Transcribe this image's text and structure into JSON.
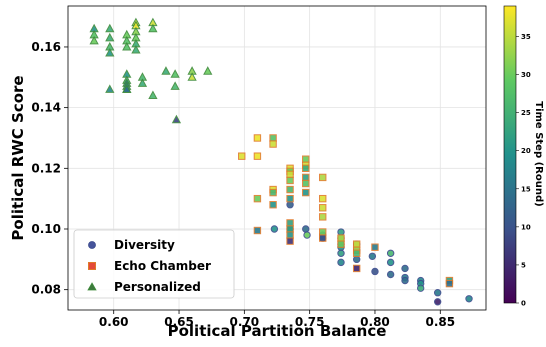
{
  "chart_data": {
    "type": "scatter",
    "xlabel": "Political Partition Balance",
    "ylabel": "Political RWC Score",
    "colorbar_label": "Time Step (Round)",
    "xlim": [
      0.565,
      0.885
    ],
    "ylim": [
      0.0733,
      0.1735
    ],
    "xticks": [
      0.6,
      0.65,
      0.7,
      0.75,
      0.8,
      0.85
    ],
    "xtick_labels": [
      "0.60",
      "0.65",
      "0.70",
      "0.75",
      "0.80",
      "0.85"
    ],
    "yticks": [
      0.08,
      0.1,
      0.12,
      0.14,
      0.16
    ],
    "ytick_labels": [
      "0.08",
      "0.10",
      "0.12",
      "0.14",
      "0.16"
    ],
    "color_range": [
      0,
      39
    ],
    "colorbar_ticks": [
      0,
      5,
      10,
      15,
      20,
      25,
      30,
      35
    ],
    "colorbar_tick_labels": [
      "0",
      "5",
      "10",
      "15",
      "20",
      "25",
      "30",
      "35"
    ],
    "colormap": [
      "#440154",
      "#3b528b",
      "#21918c",
      "#5ec962",
      "#fde725"
    ],
    "grid": true,
    "legend_position": "lower-left",
    "series": [
      {
        "name": "Diversity",
        "marker": "circle",
        "edge_color": "#3a4a8c",
        "points": [
          [
            0.735,
            0.108,
            12
          ],
          [
            0.723,
            0.1,
            20
          ],
          [
            0.735,
            0.1,
            14
          ],
          [
            0.747,
            0.1,
            14
          ],
          [
            0.748,
            0.098,
            30
          ],
          [
            0.76,
            0.098,
            16
          ],
          [
            0.76,
            0.097,
            12
          ],
          [
            0.774,
            0.099,
            22
          ],
          [
            0.774,
            0.097,
            20
          ],
          [
            0.774,
            0.095,
            18
          ],
          [
            0.774,
            0.094,
            20
          ],
          [
            0.774,
            0.092,
            22
          ],
          [
            0.774,
            0.089,
            18
          ],
          [
            0.786,
            0.095,
            20
          ],
          [
            0.786,
            0.093,
            16
          ],
          [
            0.786,
            0.09,
            14
          ],
          [
            0.798,
            0.091,
            16
          ],
          [
            0.8,
            0.086,
            10
          ],
          [
            0.812,
            0.092,
            26
          ],
          [
            0.812,
            0.089,
            20
          ],
          [
            0.812,
            0.085,
            14
          ],
          [
            0.823,
            0.087,
            14
          ],
          [
            0.823,
            0.084,
            16
          ],
          [
            0.823,
            0.083,
            14
          ],
          [
            0.835,
            0.083,
            18
          ],
          [
            0.835,
            0.082,
            20
          ],
          [
            0.848,
            0.079,
            16
          ],
          [
            0.848,
            0.076,
            4
          ],
          [
            0.872,
            0.077,
            18
          ],
          [
            0.835,
            0.0805,
            24
          ]
        ]
      },
      {
        "name": "Echo Chamber",
        "marker": "square",
        "edge_color": "#e07a2a",
        "points": [
          [
            0.698,
            0.124,
            37
          ],
          [
            0.71,
            0.13,
            38
          ],
          [
            0.71,
            0.124,
            38
          ],
          [
            0.71,
            0.11,
            30
          ],
          [
            0.71,
            0.0995,
            16
          ],
          [
            0.722,
            0.13,
            28
          ],
          [
            0.722,
            0.128,
            36
          ],
          [
            0.722,
            0.113,
            37
          ],
          [
            0.722,
            0.112,
            26
          ],
          [
            0.722,
            0.108,
            20
          ],
          [
            0.735,
            0.12,
            37
          ],
          [
            0.735,
            0.119,
            30
          ],
          [
            0.735,
            0.118,
            36
          ],
          [
            0.735,
            0.116,
            30
          ],
          [
            0.735,
            0.113,
            26
          ],
          [
            0.735,
            0.11,
            20
          ],
          [
            0.735,
            0.102,
            22
          ],
          [
            0.735,
            0.1,
            22
          ],
          [
            0.735,
            0.098,
            20
          ],
          [
            0.735,
            0.096,
            6
          ],
          [
            0.747,
            0.123,
            30
          ],
          [
            0.747,
            0.121,
            36
          ],
          [
            0.747,
            0.12,
            24
          ],
          [
            0.747,
            0.117,
            22
          ],
          [
            0.747,
            0.115,
            28
          ],
          [
            0.747,
            0.112,
            20
          ],
          [
            0.76,
            0.117,
            34
          ],
          [
            0.76,
            0.11,
            37
          ],
          [
            0.76,
            0.107,
            36
          ],
          [
            0.76,
            0.104,
            34
          ],
          [
            0.76,
            0.099,
            30
          ],
          [
            0.76,
            0.097,
            10
          ],
          [
            0.774,
            0.097,
            34
          ],
          [
            0.774,
            0.095,
            30
          ],
          [
            0.786,
            0.095,
            36
          ],
          [
            0.786,
            0.093,
            34
          ],
          [
            0.786,
            0.092,
            26
          ],
          [
            0.786,
            0.087,
            4
          ],
          [
            0.8,
            0.094,
            16
          ],
          [
            0.857,
            0.083,
            22
          ],
          [
            0.857,
            0.082,
            14
          ]
        ]
      },
      {
        "name": "Personalized",
        "marker": "triangle",
        "edge_color": "#3d8a3a",
        "points": [
          [
            0.585,
            0.166,
            20
          ],
          [
            0.585,
            0.164,
            28
          ],
          [
            0.585,
            0.162,
            30
          ],
          [
            0.597,
            0.166,
            24
          ],
          [
            0.597,
            0.163,
            24
          ],
          [
            0.597,
            0.16,
            26
          ],
          [
            0.597,
            0.158,
            20
          ],
          [
            0.597,
            0.146,
            18
          ],
          [
            0.61,
            0.164,
            30
          ],
          [
            0.61,
            0.162,
            28
          ],
          [
            0.61,
            0.16,
            28
          ],
          [
            0.61,
            0.151,
            20
          ],
          [
            0.61,
            0.149,
            24
          ],
          [
            0.61,
            0.148,
            14
          ],
          [
            0.61,
            0.147,
            16
          ],
          [
            0.61,
            0.146,
            16
          ],
          [
            0.61,
            0.146,
            14
          ],
          [
            0.617,
            0.168,
            36
          ],
          [
            0.617,
            0.167,
            38
          ],
          [
            0.617,
            0.165,
            32
          ],
          [
            0.617,
            0.163,
            30
          ],
          [
            0.617,
            0.161,
            24
          ],
          [
            0.617,
            0.159,
            24
          ],
          [
            0.622,
            0.15,
            26
          ],
          [
            0.622,
            0.148,
            24
          ],
          [
            0.63,
            0.168,
            36
          ],
          [
            0.63,
            0.166,
            28
          ],
          [
            0.63,
            0.144,
            26
          ],
          [
            0.64,
            0.152,
            24
          ],
          [
            0.647,
            0.151,
            28
          ],
          [
            0.647,
            0.147,
            26
          ],
          [
            0.648,
            0.136,
            8
          ],
          [
            0.66,
            0.152,
            32
          ],
          [
            0.66,
            0.15,
            36
          ],
          [
            0.672,
            0.152,
            30
          ]
        ]
      }
    ]
  }
}
